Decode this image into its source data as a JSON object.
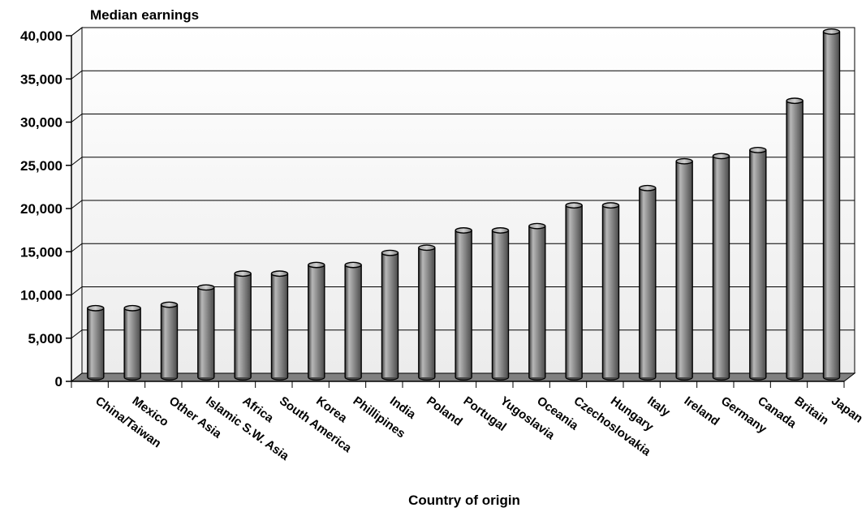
{
  "chart_data": {
    "type": "bar",
    "title": "",
    "ylabel": "Median earnings",
    "xlabel": "Country of origin",
    "ylim": [
      0,
      40000
    ],
    "yticks": [
      0,
      5000,
      10000,
      15000,
      20000,
      25000,
      30000,
      35000,
      40000
    ],
    "ytick_labels": [
      "0",
      "5,000",
      "10,000",
      "15,000",
      "20,000",
      "25,000",
      "30,000",
      "35,000",
      "40,000"
    ],
    "grid": true,
    "legend": "none",
    "bar_style": "3d-cylinder",
    "categories": [
      "China/Taiwan",
      "Mexico",
      "Other Asia",
      "Islamic S.W. Asia",
      "Africa",
      "South America",
      "Korea",
      "Phillipines",
      "India",
      "Poland",
      "Portugal",
      "Yugoslavia",
      "Oceania",
      "Czechoslovakia",
      "Hungary",
      "Italy",
      "Ireland",
      "Germany",
      "Canada",
      "Britain",
      "Japan"
    ],
    "values": [
      8000,
      8000,
      8400,
      10400,
      12000,
      12000,
      13000,
      13000,
      14400,
      15000,
      17000,
      17000,
      17500,
      19900,
      19900,
      21900,
      25000,
      25600,
      26300,
      32000,
      40000
    ],
    "colors": {
      "bar": "#8a8a8a",
      "floor": "#808080",
      "grid": "#000000"
    }
  }
}
